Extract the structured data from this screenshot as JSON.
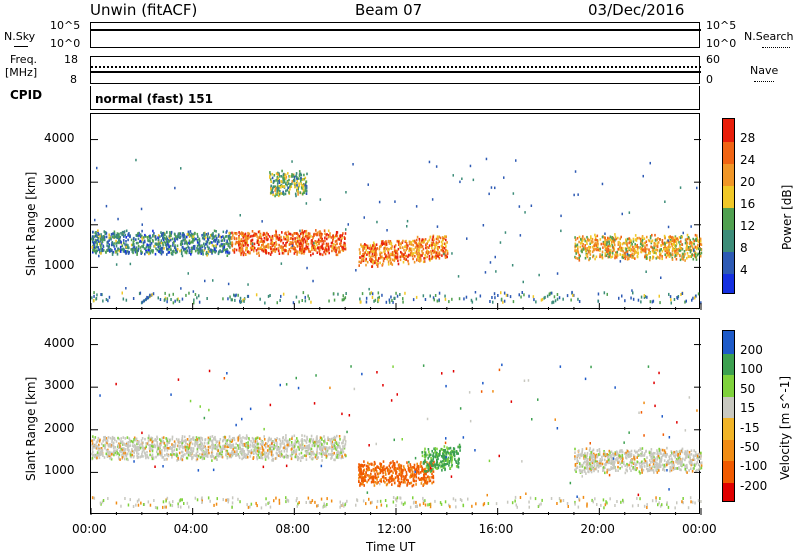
{
  "header": {
    "station": "Unwin (fitACF)",
    "beam": "Beam 07",
    "date": "03/Dec/2016"
  },
  "noise_panel": {
    "left_label": "N.Sky",
    "left_ticks": [
      "10^5",
      "10^0"
    ],
    "right_ticks": [
      "10^5",
      "10^0"
    ],
    "right_label": "N.Search"
  },
  "freq_panel": {
    "left_label_1": "Freq.",
    "left_label_2": "[MHz]",
    "left_ticks": [
      "18",
      "8"
    ],
    "right_ticks": [
      "60",
      "0"
    ],
    "right_label": "Nave"
  },
  "cpid": {
    "label": "CPID",
    "value": "normal (fast) 151"
  },
  "x_axis": {
    "title": "Time UT",
    "ticks": [
      "00:00",
      "04:00",
      "08:00",
      "12:00",
      "16:00",
      "20:00",
      "00:00"
    ]
  },
  "colors": {
    "power_scale": [
      "#1530e0",
      "#2d5ab4",
      "#3c8c78",
      "#50a050",
      "#f0c828",
      "#f09628",
      "#f06414",
      "#e81e0a"
    ],
    "velocity_scale": [
      "#e00000",
      "#f05a00",
      "#f08c14",
      "#f0b428",
      "#c8c8c0",
      "#7fd23c",
      "#3ca050",
      "#1e5ac8"
    ]
  },
  "chart_data": [
    {
      "type": "heatmap",
      "title": "",
      "xlabel": "Time UT",
      "ylabel": "Slant Range [km]",
      "x_ticks": [
        "00:00",
        "04:00",
        "08:00",
        "12:00",
        "16:00",
        "20:00",
        "00:00"
      ],
      "y_ticks": [
        1000,
        2000,
        3000,
        4000
      ],
      "colorbar_label": "Power [dB]",
      "colorbar_ticks": [
        4,
        8,
        12,
        16,
        20,
        24,
        28
      ],
      "features": [
        {
          "t_start": 0.0,
          "t_end": 5.5,
          "range_km": 1600,
          "value": 10
        },
        {
          "t_start": 5.5,
          "t_end": 10.0,
          "range_km": 1600,
          "value": 26
        },
        {
          "t_start": 10.5,
          "t_end": 14.0,
          "range_km": 1300,
          "value": 24
        },
        {
          "t_start": 7.0,
          "t_end": 8.5,
          "range_km": 3000,
          "value": 14
        },
        {
          "t_start": 19.0,
          "t_end": 24.0,
          "range_km": 1500,
          "value": 20
        }
      ]
    },
    {
      "type": "heatmap",
      "title": "",
      "xlabel": "Time UT",
      "ylabel": "Slant Range [km]",
      "x_ticks": [
        "00:00",
        "04:00",
        "08:00",
        "12:00",
        "16:00",
        "20:00",
        "00:00"
      ],
      "y_ticks": [
        1000,
        2000,
        3000,
        4000
      ],
      "colorbar_label": "Velocity [m s^-1]",
      "colorbar_ticks": [
        200,
        100,
        50,
        15,
        -15,
        -50,
        -100,
        -200
      ],
      "features": [
        {
          "t_start": 0.0,
          "t_end": 10.0,
          "range_km": 1600,
          "value": 0
        },
        {
          "t_start": 10.5,
          "t_end": 13.5,
          "range_km": 1000,
          "value": -60
        },
        {
          "t_start": 13.0,
          "t_end": 14.5,
          "range_km": 1300,
          "value": 60
        },
        {
          "t_start": 19.0,
          "t_end": 24.0,
          "range_km": 1300,
          "value": 0
        }
      ]
    }
  ]
}
